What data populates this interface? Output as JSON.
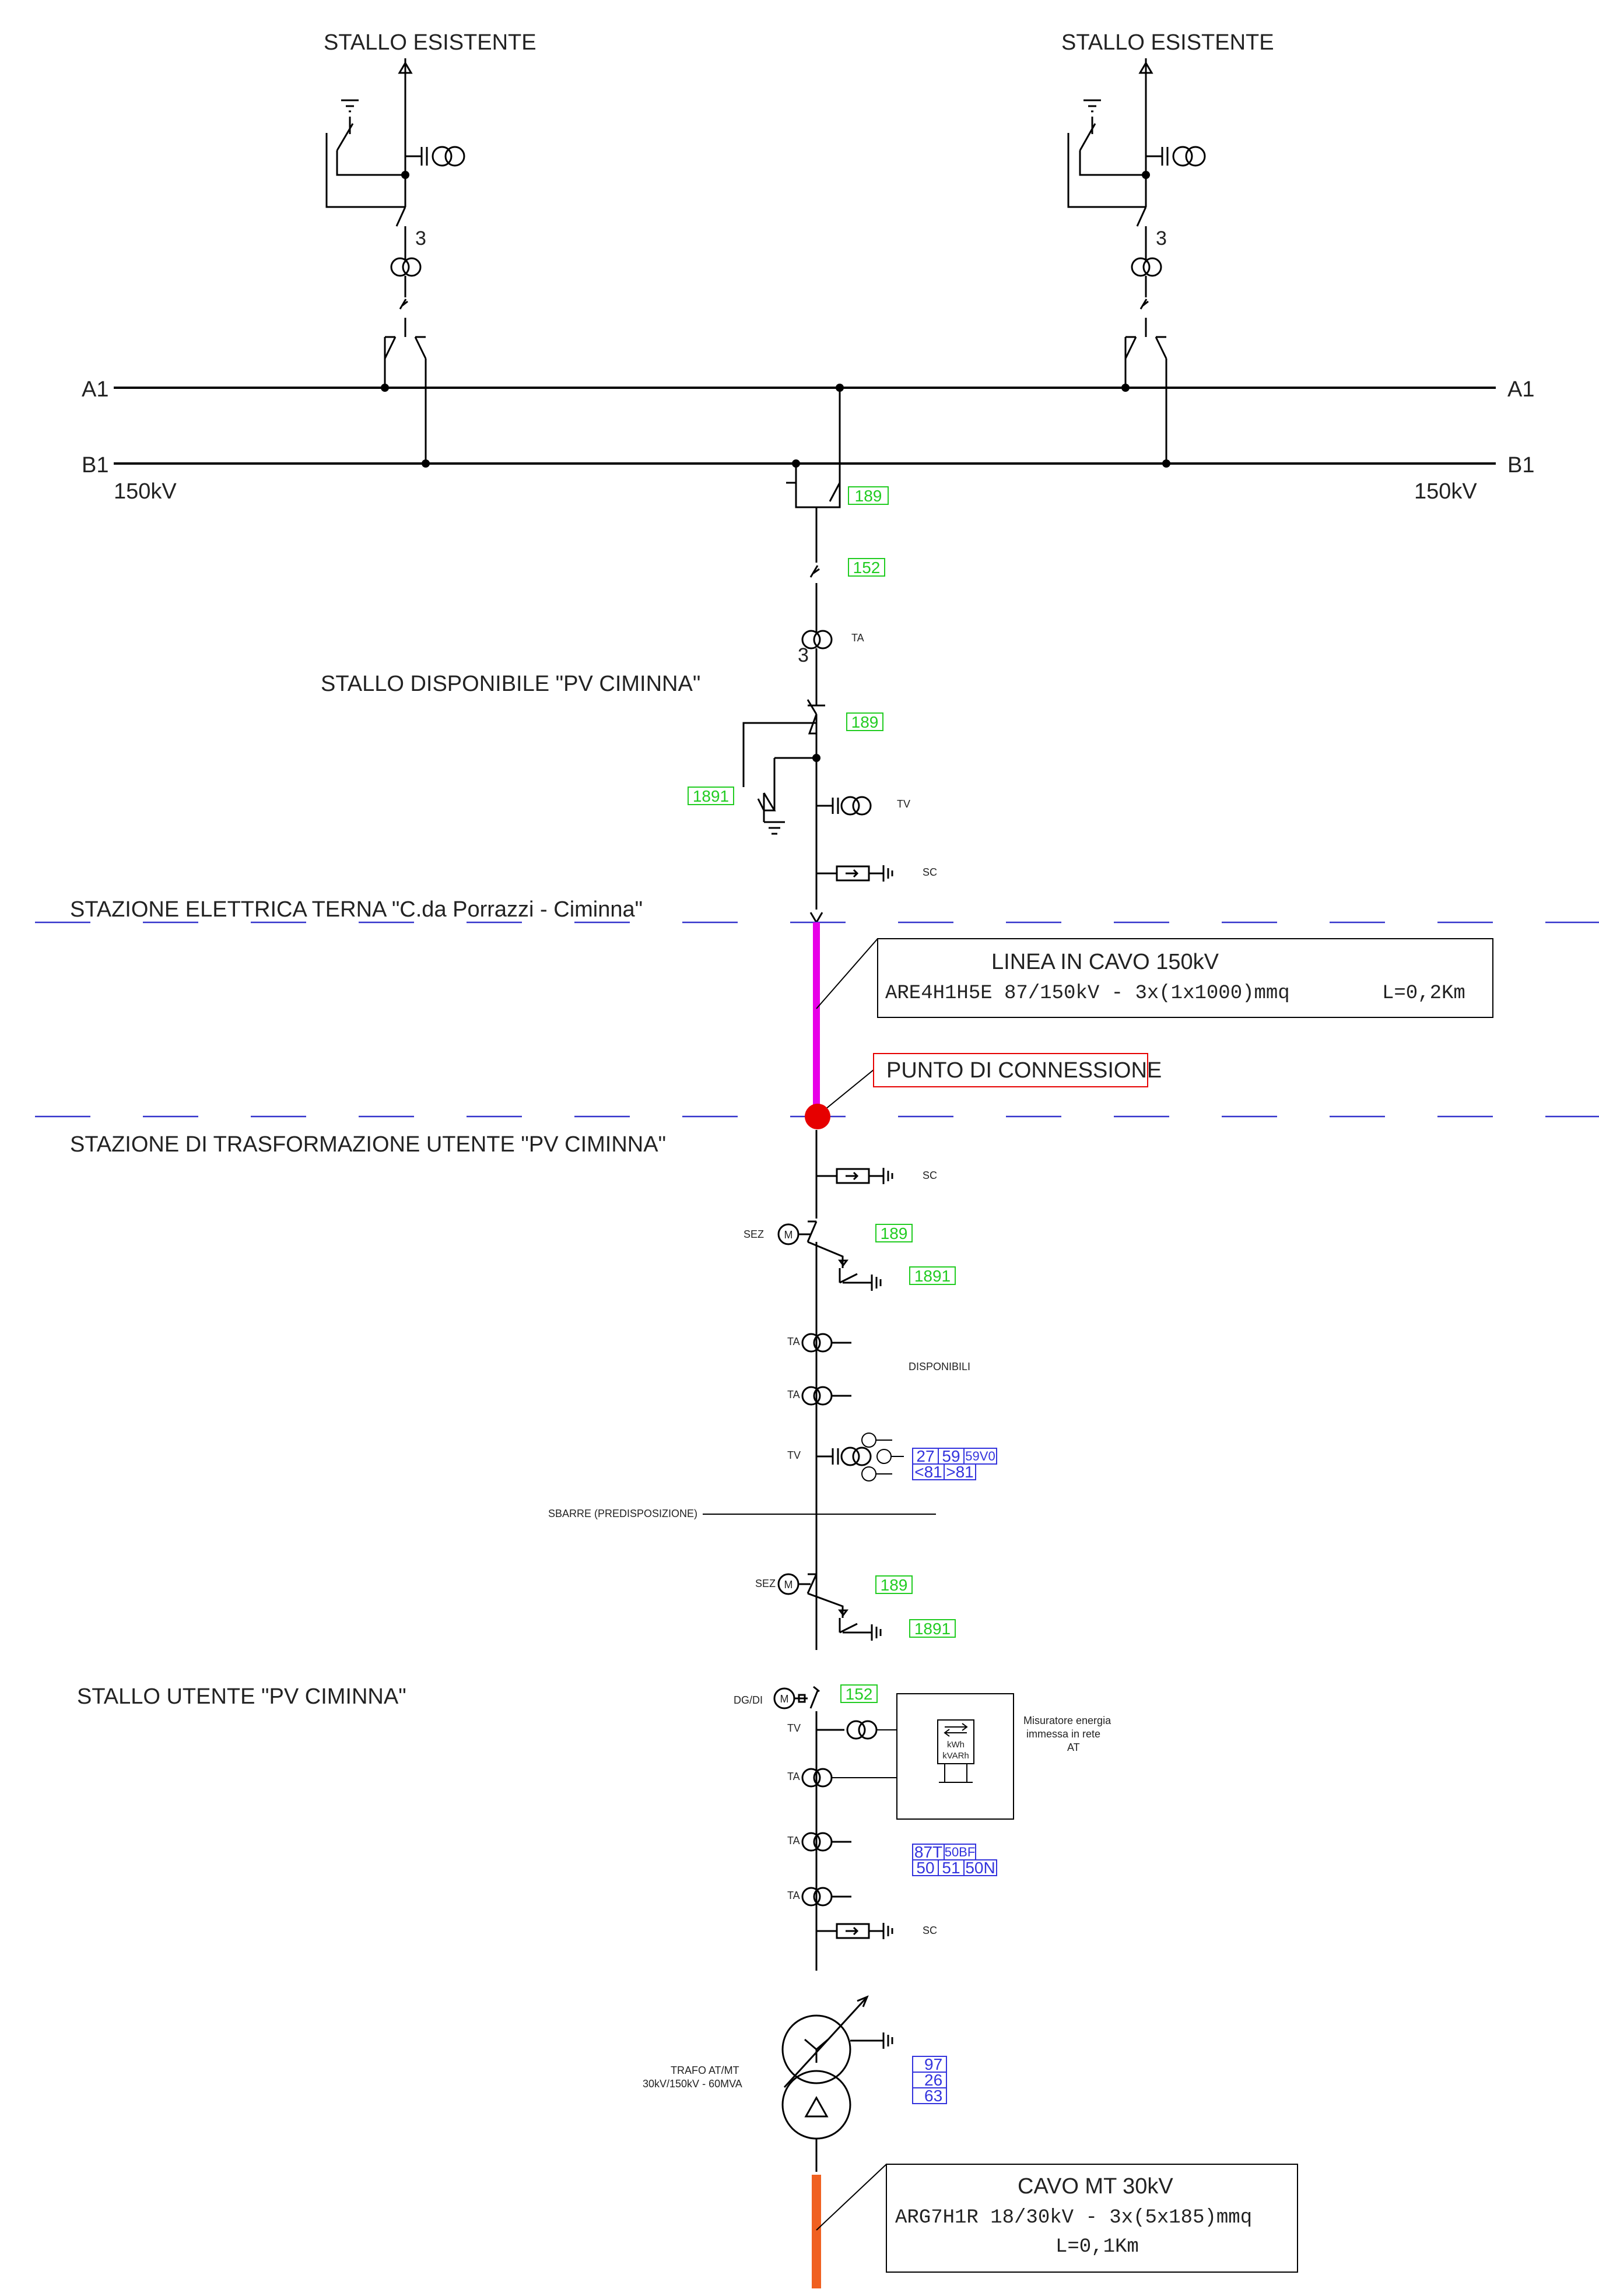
{
  "colors": {
    "line": "#000000",
    "boundary_dash": "#3333cc",
    "cable_150kv": "#e800e8",
    "connection_point": "#e60000",
    "cable_mt": "#f06020",
    "relay_tag_green": "#22cc22",
    "protection_tag_blue": "#3333dd"
  },
  "top": {
    "stallo_left": "STALLO ESISTENTE",
    "stallo_right": "STALLO ESISTENTE",
    "bay_ct_count": "3"
  },
  "busbars": {
    "a1_left": "A1",
    "a1_right": "A1",
    "b1_left": "B1",
    "b1_right": "B1",
    "voltage_left": "150kV",
    "voltage_right": "150kV"
  },
  "terna_bay": {
    "tag_189_a": "189",
    "tag_152": "152",
    "ta_count": "3",
    "ta_label": "TA",
    "title": "STALLO DISPONIBILE \"PV CIMINNA\"",
    "tag_189_b": "189",
    "tag_1891": "1891",
    "tv_label": "TV",
    "sc_label": "SC",
    "station_label": "STAZIONE ELETTRICA TERNA \"C.da Porrazzi - Ciminna\""
  },
  "cable_150": {
    "line1": "LINEA IN CAVO 150kV",
    "line2": "ARE4H1H5E 87/150kV - 3x(1x1000)mmq",
    "length": "L=0,2Km"
  },
  "connection": {
    "label": "PUNTO DI CONNESSIONE",
    "station_label": "STAZIONE DI TRASFORMAZIONE UTENTE \"PV CIMINNA\""
  },
  "user_bay": {
    "sc1": "SC",
    "sez1": "SEZ",
    "motor": "M",
    "tag_189_1": "189",
    "tag_1891_1": "1891",
    "ta1": "TA",
    "disponibili": "DISPONIBILI",
    "ta2": "TA",
    "tv": "TV",
    "relays_tv": [
      "27",
      "59",
      "59V0",
      "<81",
      ">81"
    ],
    "sbarre": "SBARRE (PREDISPOSIZIONE)",
    "sez2": "SEZ",
    "tag_189_2": "189",
    "tag_1891_2": "1891",
    "title": "STALLO UTENTE \"PV CIMINNA\"",
    "dgdi": "DG/DI",
    "tag_152": "152",
    "tv2": "TV",
    "ta3": "TA",
    "ta4": "TA",
    "ta5": "TA",
    "sc2": "SC",
    "meter": [
      "Misuratore energia",
      "immessa in rete",
      "AT"
    ],
    "meter_units": [
      "kWh",
      "kVARh"
    ],
    "relays_ta": [
      "87T",
      "50BF",
      "50",
      "51",
      "50N"
    ],
    "trafo": [
      "TRAFO AT/MT",
      "30kV/150kV - 60MVA"
    ],
    "relays_trafo": [
      "97",
      "26",
      "63"
    ]
  },
  "cable_mt": {
    "line1": "CAVO MT 30kV",
    "line2": "ARG7H1R 18/30kV - 3x(5x185)mmq",
    "length": "L=0,1Km"
  }
}
